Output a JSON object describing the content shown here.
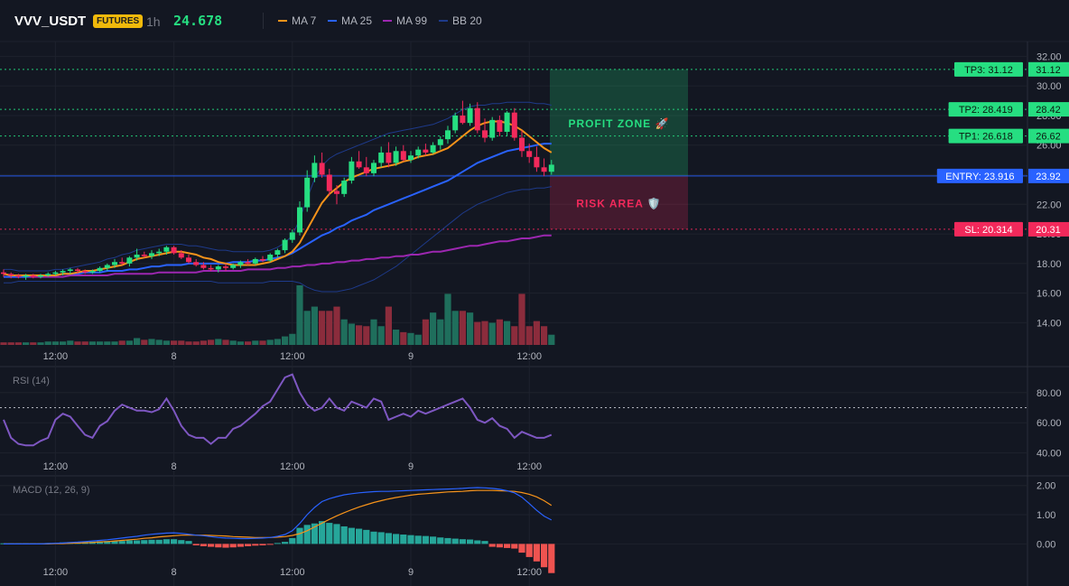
{
  "header": {
    "symbol": "VVV_USDT",
    "badge": "FUTURES",
    "timeframe": "1h",
    "last_price": "24.678"
  },
  "legend": [
    {
      "label": "MA 7",
      "color": "#f7931a"
    },
    {
      "label": "MA 25",
      "color": "#2962ff"
    },
    {
      "label": "MA 99",
      "color": "#9c27b0"
    },
    {
      "label": "BB 20",
      "color": "#1e3a8a"
    }
  ],
  "colors": {
    "up": "#26de81",
    "down": "#f2295b",
    "up_vol": "#1f6e5c",
    "down_vol": "#8b2c3c",
    "grid": "#1e222d"
  },
  "chart_data": [
    {
      "name": "price",
      "type": "candlestick",
      "ylim": [
        12.5,
        33.0
      ],
      "y_ticks": [
        "14.00",
        "16.00",
        "18.00",
        "20.00",
        "22.00",
        "24.00",
        "26.00",
        "28.00",
        "30.00",
        "32.00"
      ],
      "x_ticks": [
        "12:00",
        "8",
        "12:00",
        "9",
        "12:00"
      ],
      "x_tick_index": [
        7,
        23,
        39,
        55,
        71
      ],
      "candles": [
        [
          17.4,
          17.6,
          17.1,
          17.3
        ],
        [
          17.3,
          17.4,
          17.0,
          17.2
        ],
        [
          17.2,
          17.3,
          17.0,
          17.1
        ],
        [
          17.1,
          17.3,
          16.9,
          17.2
        ],
        [
          17.2,
          17.3,
          17.0,
          17.1
        ],
        [
          17.1,
          17.3,
          17.0,
          17.2
        ],
        [
          17.2,
          17.4,
          17.1,
          17.3
        ],
        [
          17.3,
          17.5,
          17.2,
          17.4
        ],
        [
          17.4,
          17.6,
          17.2,
          17.5
        ],
        [
          17.5,
          17.7,
          17.3,
          17.6
        ],
        [
          17.6,
          17.7,
          17.3,
          17.5
        ],
        [
          17.5,
          17.6,
          17.3,
          17.4
        ],
        [
          17.4,
          17.6,
          17.3,
          17.5
        ],
        [
          17.5,
          17.8,
          17.4,
          17.7
        ],
        [
          17.7,
          18.0,
          17.5,
          17.9
        ],
        [
          17.9,
          18.3,
          17.7,
          18.1
        ],
        [
          18.1,
          18.4,
          17.9,
          18.0
        ],
        [
          18.0,
          18.5,
          17.8,
          18.4
        ],
        [
          18.4,
          19.0,
          18.2,
          18.6
        ],
        [
          18.6,
          18.8,
          18.4,
          18.5
        ],
        [
          18.5,
          18.9,
          18.3,
          18.7
        ],
        [
          18.7,
          19.0,
          18.5,
          18.8
        ],
        [
          18.8,
          19.2,
          18.6,
          19.1
        ],
        [
          19.1,
          19.2,
          18.6,
          18.7
        ],
        [
          18.7,
          18.9,
          18.3,
          18.4
        ],
        [
          18.4,
          18.6,
          18.0,
          18.1
        ],
        [
          18.1,
          18.3,
          17.8,
          17.9
        ],
        [
          17.9,
          18.1,
          17.6,
          17.7
        ],
        [
          17.7,
          17.9,
          17.5,
          17.6
        ],
        [
          17.6,
          17.9,
          17.4,
          17.8
        ],
        [
          17.8,
          18.0,
          17.5,
          17.7
        ],
        [
          17.7,
          18.0,
          17.6,
          17.9
        ],
        [
          17.9,
          18.2,
          17.7,
          18.1
        ],
        [
          18.1,
          18.3,
          17.9,
          18.0
        ],
        [
          18.0,
          18.4,
          17.9,
          18.3
        ],
        [
          18.3,
          18.5,
          18.1,
          18.2
        ],
        [
          18.2,
          18.7,
          18.1,
          18.6
        ],
        [
          18.6,
          19.0,
          18.4,
          18.9
        ],
        [
          18.9,
          19.7,
          18.7,
          19.6
        ],
        [
          19.6,
          20.3,
          19.4,
          20.1
        ],
        [
          20.1,
          22.2,
          19.9,
          21.8
        ],
        [
          21.8,
          24.3,
          21.5,
          23.8
        ],
        [
          23.8,
          25.3,
          23.5,
          24.8
        ],
        [
          24.8,
          25.5,
          23.8,
          24.0
        ],
        [
          24.0,
          24.4,
          22.6,
          22.9
        ],
        [
          22.9,
          23.3,
          22.0,
          22.7
        ],
        [
          22.7,
          23.8,
          22.5,
          23.6
        ],
        [
          23.6,
          25.2,
          23.4,
          24.9
        ],
        [
          24.9,
          25.6,
          24.4,
          24.5
        ],
        [
          24.5,
          25.2,
          23.9,
          24.1
        ],
        [
          24.1,
          25.0,
          23.9,
          24.8
        ],
        [
          24.8,
          25.9,
          24.5,
          25.5
        ],
        [
          25.5,
          26.2,
          24.5,
          24.8
        ],
        [
          24.8,
          25.9,
          24.6,
          25.6
        ],
        [
          25.6,
          26.0,
          24.9,
          25.0
        ],
        [
          25.0,
          25.6,
          24.8,
          25.3
        ],
        [
          25.3,
          25.9,
          25.1,
          25.7
        ],
        [
          25.7,
          26.1,
          25.3,
          25.5
        ],
        [
          25.5,
          26.2,
          25.4,
          26.0
        ],
        [
          26.0,
          26.6,
          25.7,
          26.4
        ],
        [
          26.4,
          27.3,
          26.1,
          27.0
        ],
        [
          27.0,
          28.2,
          26.8,
          28.0
        ],
        [
          28.0,
          29.0,
          27.4,
          27.5
        ],
        [
          27.5,
          28.8,
          27.3,
          28.5
        ],
        [
          28.5,
          28.9,
          26.8,
          27.0
        ],
        [
          27.0,
          27.8,
          26.2,
          26.5
        ],
        [
          26.5,
          27.9,
          26.3,
          27.7
        ],
        [
          27.7,
          28.0,
          26.6,
          26.9
        ],
        [
          26.9,
          28.3,
          26.6,
          28.2
        ],
        [
          28.2,
          28.5,
          26.3,
          26.5
        ],
        [
          26.5,
          27.0,
          25.2,
          25.6
        ],
        [
          25.6,
          26.1,
          24.8,
          25.2
        ],
        [
          25.2,
          25.9,
          24.2,
          24.5
        ],
        [
          24.5,
          25.1,
          23.9,
          24.2
        ],
        [
          24.2,
          25.0,
          24.0,
          24.678
        ]
      ],
      "ma7": [
        17.3,
        17.2,
        17.2,
        17.2,
        17.2,
        17.2,
        17.2,
        17.2,
        17.3,
        17.3,
        17.4,
        17.5,
        17.5,
        17.6,
        17.7,
        17.8,
        17.9,
        18.1,
        18.3,
        18.4,
        18.5,
        18.6,
        18.7,
        18.8,
        18.8,
        18.7,
        18.6,
        18.4,
        18.3,
        18.1,
        18.0,
        17.9,
        17.9,
        17.9,
        17.9,
        18.0,
        18.1,
        18.3,
        18.5,
        18.8,
        19.4,
        20.3,
        21.2,
        22.1,
        22.7,
        23.1,
        23.5,
        23.8,
        24.0,
        24.2,
        24.4,
        24.5,
        24.6,
        24.7,
        24.9,
        25.0,
        25.2,
        25.3,
        25.4,
        25.6,
        25.8,
        26.2,
        26.6,
        27.0,
        27.3,
        27.5,
        27.6,
        27.6,
        27.5,
        27.3,
        27.0,
        26.6,
        26.2,
        25.8,
        25.5
      ],
      "ma25": [
        17.1,
        17.1,
        17.1,
        17.1,
        17.2,
        17.2,
        17.2,
        17.2,
        17.3,
        17.3,
        17.3,
        17.4,
        17.4,
        17.4,
        17.5,
        17.5,
        17.5,
        17.6,
        17.6,
        17.7,
        17.8,
        17.8,
        17.9,
        17.9,
        17.9,
        18.0,
        18.0,
        18.0,
        18.0,
        18.0,
        18.0,
        18.1,
        18.1,
        18.1,
        18.2,
        18.2,
        18.3,
        18.4,
        18.5,
        18.7,
        19.0,
        19.3,
        19.6,
        19.9,
        20.1,
        20.4,
        20.6,
        20.9,
        21.1,
        21.3,
        21.6,
        21.8,
        22.0,
        22.2,
        22.4,
        22.6,
        22.8,
        23.0,
        23.2,
        23.4,
        23.6,
        23.9,
        24.2,
        24.5,
        24.8,
        25.0,
        25.2,
        25.4,
        25.6,
        25.7,
        25.8,
        25.9,
        26.0,
        26.1,
        26.1
      ],
      "ma99": [
        17.1,
        17.1,
        17.1,
        17.1,
        17.1,
        17.1,
        17.1,
        17.1,
        17.1,
        17.2,
        17.2,
        17.2,
        17.2,
        17.2,
        17.2,
        17.3,
        17.3,
        17.3,
        17.3,
        17.3,
        17.3,
        17.4,
        17.4,
        17.4,
        17.4,
        17.4,
        17.4,
        17.5,
        17.5,
        17.5,
        17.5,
        17.5,
        17.5,
        17.6,
        17.6,
        17.6,
        17.6,
        17.7,
        17.7,
        17.8,
        17.8,
        17.9,
        17.9,
        18.0,
        18.0,
        18.1,
        18.1,
        18.2,
        18.2,
        18.3,
        18.3,
        18.4,
        18.4,
        18.5,
        18.5,
        18.6,
        18.6,
        18.7,
        18.8,
        18.8,
        18.9,
        19.0,
        19.1,
        19.2,
        19.2,
        19.3,
        19.4,
        19.5,
        19.5,
        19.6,
        19.7,
        19.7,
        19.8,
        19.9,
        19.9
      ],
      "bb_upper": [
        17.6,
        17.6,
        17.5,
        17.5,
        17.5,
        17.5,
        17.5,
        17.6,
        17.6,
        17.7,
        17.8,
        17.9,
        18.0,
        18.1,
        18.3,
        18.4,
        18.6,
        18.7,
        18.9,
        19.0,
        19.1,
        19.2,
        19.3,
        19.3,
        19.3,
        19.2,
        19.2,
        19.1,
        19.0,
        18.9,
        18.9,
        18.8,
        18.8,
        18.8,
        18.8,
        18.8,
        18.9,
        19.1,
        19.4,
        19.9,
        21.0,
        22.4,
        23.7,
        24.6,
        25.1,
        25.4,
        25.6,
        25.8,
        26.0,
        26.2,
        26.4,
        26.6,
        26.8,
        26.9,
        27.0,
        27.1,
        27.2,
        27.3,
        27.4,
        27.6,
        27.8,
        28.1,
        28.4,
        28.6,
        28.7,
        28.7,
        28.8,
        28.8,
        28.9,
        28.9,
        28.9,
        28.9,
        28.8,
        28.8,
        28.7
      ],
      "bb_lower": [
        16.7,
        16.7,
        16.8,
        16.8,
        16.8,
        16.8,
        16.8,
        16.8,
        16.8,
        16.8,
        16.8,
        16.8,
        16.8,
        16.8,
        16.8,
        16.8,
        16.8,
        16.8,
        16.8,
        16.8,
        16.8,
        16.8,
        16.8,
        16.8,
        16.8,
        16.8,
        16.8,
        16.8,
        16.8,
        16.7,
        16.7,
        16.7,
        16.7,
        16.7,
        16.7,
        16.7,
        16.8,
        16.8,
        16.8,
        16.8,
        16.7,
        16.4,
        16.2,
        16.1,
        16.1,
        16.1,
        16.2,
        16.3,
        16.5,
        16.7,
        16.9,
        17.2,
        17.5,
        17.8,
        18.2,
        18.6,
        19.0,
        19.4,
        19.8,
        20.2,
        20.6,
        21.0,
        21.4,
        21.7,
        22.0,
        22.2,
        22.4,
        22.6,
        22.8,
        22.9,
        23.0,
        23.0,
        23.1,
        23.1,
        23.2
      ],
      "volume": [
        3,
        3,
        3,
        3,
        3,
        3,
        4,
        4,
        4,
        5,
        4,
        4,
        4,
        4,
        4,
        4,
        5,
        5,
        8,
        6,
        7,
        6,
        5,
        5,
        5,
        4,
        4,
        5,
        6,
        7,
        6,
        5,
        4,
        4,
        5,
        5,
        6,
        7,
        10,
        13,
        70,
        40,
        45,
        40,
        40,
        45,
        30,
        25,
        23,
        22,
        30,
        22,
        45,
        18,
        15,
        14,
        12,
        30,
        38,
        30,
        60,
        40,
        40,
        38,
        27,
        28,
        26,
        30,
        28,
        22,
        60,
        22,
        28,
        22,
        12
      ],
      "zones": {
        "profit_label": "PROFIT ZONE 🚀",
        "risk_label": "RISK AREA 🛡️"
      },
      "levels": [
        {
          "key": "tp3",
          "label": "TP3: 31.12",
          "price": 31.12,
          "value": "31.12",
          "color": "#26de81"
        },
        {
          "key": "tp2",
          "label": "TP2: 28.419",
          "price": 28.419,
          "value": "28.42",
          "color": "#26de81"
        },
        {
          "key": "tp1",
          "label": "TP1: 26.618",
          "price": 26.618,
          "value": "26.62",
          "color": "#26de81"
        },
        {
          "key": "entry",
          "label": "ENTRY: 23.916",
          "price": 23.916,
          "value": "23.92",
          "color": "#2962ff"
        },
        {
          "key": "sl",
          "label": "SL: 20.314",
          "price": 20.314,
          "value": "20.31",
          "color": "#f2295b"
        }
      ]
    },
    {
      "name": "rsi",
      "type": "line",
      "title": "RSI (14)",
      "ylim": [
        38,
        96
      ],
      "y_ticks": [
        "40.00",
        "60.00",
        "80.00"
      ],
      "threshold": 70,
      "values": [
        62,
        50,
        46,
        45,
        45,
        48,
        50,
        62,
        66,
        64,
        58,
        52,
        50,
        58,
        61,
        68,
        72,
        70,
        68,
        68,
        67,
        69,
        76,
        68,
        58,
        52,
        50,
        50,
        46,
        50,
        50,
        56,
        58,
        62,
        66,
        71,
        74,
        82,
        90,
        92,
        80,
        72,
        68,
        70,
        76,
        70,
        68,
        74,
        72,
        70,
        76,
        74,
        62,
        64,
        66,
        64,
        68,
        66,
        68,
        70,
        72,
        74,
        76,
        70,
        62,
        60,
        63,
        58,
        56,
        50,
        54,
        52,
        50,
        50,
        52
      ]
    },
    {
      "name": "macd",
      "type": "line+histogram",
      "title": "MACD (12, 26, 9)",
      "ylim": [
        -0.7,
        2.3
      ],
      "y_ticks": [
        "0.00",
        "1.00",
        "2.00"
      ],
      "macd": [
        0.0,
        0.0,
        0.0,
        0.0,
        0.0,
        0.0,
        0.01,
        0.02,
        0.03,
        0.05,
        0.06,
        0.08,
        0.1,
        0.12,
        0.14,
        0.17,
        0.2,
        0.23,
        0.26,
        0.3,
        0.33,
        0.35,
        0.37,
        0.38,
        0.36,
        0.33,
        0.3,
        0.28,
        0.25,
        0.22,
        0.2,
        0.19,
        0.18,
        0.18,
        0.19,
        0.2,
        0.22,
        0.26,
        0.32,
        0.45,
        0.7,
        1.0,
        1.25,
        1.45,
        1.55,
        1.62,
        1.68,
        1.72,
        1.75,
        1.77,
        1.79,
        1.8,
        1.8,
        1.81,
        1.82,
        1.83,
        1.84,
        1.85,
        1.86,
        1.87,
        1.88,
        1.89,
        1.9,
        1.92,
        1.93,
        1.92,
        1.9,
        1.87,
        1.82,
        1.75,
        1.6,
        1.38,
        1.15,
        0.95,
        0.82
      ],
      "signal": [
        0.0,
        0.0,
        0.0,
        0.0,
        0.0,
        0.0,
        0.0,
        0.01,
        0.01,
        0.02,
        0.03,
        0.04,
        0.05,
        0.07,
        0.08,
        0.1,
        0.12,
        0.14,
        0.16,
        0.19,
        0.21,
        0.24,
        0.26,
        0.28,
        0.3,
        0.3,
        0.3,
        0.3,
        0.29,
        0.28,
        0.27,
        0.25,
        0.24,
        0.23,
        0.22,
        0.22,
        0.22,
        0.23,
        0.25,
        0.29,
        0.35,
        0.45,
        0.58,
        0.71,
        0.84,
        0.96,
        1.07,
        1.17,
        1.26,
        1.34,
        1.42,
        1.48,
        1.54,
        1.59,
        1.63,
        1.67,
        1.7,
        1.72,
        1.74,
        1.76,
        1.78,
        1.79,
        1.8,
        1.82,
        1.83,
        1.83,
        1.83,
        1.82,
        1.81,
        1.8,
        1.76,
        1.7,
        1.61,
        1.48,
        1.32
      ],
      "hist": [
        0.02,
        0.02,
        0.02,
        0.02,
        0.02,
        0.02,
        0.03,
        0.03,
        0.05,
        0.06,
        0.06,
        0.07,
        0.08,
        0.09,
        0.1,
        0.1,
        0.1,
        0.12,
        0.12,
        0.13,
        0.14,
        0.14,
        0.16,
        0.16,
        0.13,
        0.1,
        -0.05,
        -0.08,
        -0.1,
        -0.12,
        -0.13,
        -0.12,
        -0.1,
        -0.08,
        -0.06,
        -0.05,
        -0.03,
        0.03,
        0.07,
        0.2,
        0.55,
        0.65,
        0.7,
        0.78,
        0.72,
        0.68,
        0.6,
        0.55,
        0.52,
        0.48,
        0.42,
        0.4,
        0.37,
        0.34,
        0.32,
        0.3,
        0.28,
        0.27,
        0.25,
        0.22,
        0.2,
        0.18,
        0.16,
        0.15,
        0.12,
        0.1,
        -0.1,
        -0.12,
        -0.14,
        -0.16,
        -0.3,
        -0.45,
        -0.6,
        -0.8,
        -1.0
      ]
    }
  ]
}
